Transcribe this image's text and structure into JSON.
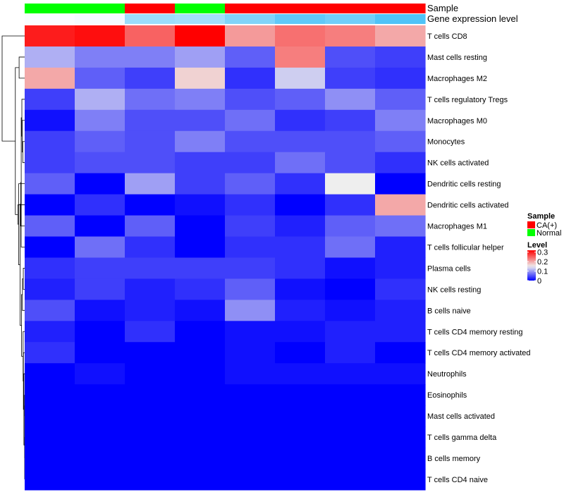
{
  "chart_data": {
    "type": "heatmap",
    "title": "",
    "annotation_tracks": {
      "sample_label": "Sample",
      "level_label": "Gene expression level"
    },
    "columns": [
      {
        "sample": "Normal",
        "level": 0.31
      },
      {
        "sample": "Normal",
        "level": 0.3
      },
      {
        "sample": "CA(+)",
        "level": 0.14
      },
      {
        "sample": "Normal",
        "level": 0.15
      },
      {
        "sample": "CA(+)",
        "level": 0.09
      },
      {
        "sample": "CA(+)",
        "level": 0.03
      },
      {
        "sample": "CA(+)",
        "level": 0.06
      },
      {
        "sample": "CA(+)",
        "level": 0.0
      }
    ],
    "rows": [
      "T cells CD8",
      "Mast cells resting",
      "Macrophages M2",
      "T cells regulatory  Tregs",
      "Macrophages M0",
      "Monocytes",
      "NK cells activated",
      "Dendritic cells resting",
      "Dendritic cells activated",
      "Macrophages M1",
      "T cells follicular helper",
      "Plasma cells",
      "NK cells resting",
      "B cells naive",
      "T cells CD4 memory resting",
      "T cells CD4 memory activated",
      "Neutrophils",
      "Eosinophils",
      "Mast cells activated",
      "T cells gamma delta",
      "B cells memory",
      "T cells CD4 naive"
    ],
    "values": [
      [
        0.3,
        0.31,
        0.25,
        0.32,
        0.21,
        0.24,
        0.23,
        0.2
      ],
      [
        0.11,
        0.08,
        0.08,
        0.1,
        0.06,
        0.23,
        0.05,
        0.04
      ],
      [
        0.2,
        0.06,
        0.04,
        0.17,
        0.03,
        0.13,
        0.04,
        0.03
      ],
      [
        0.04,
        0.11,
        0.07,
        0.08,
        0.05,
        0.06,
        0.09,
        0.06
      ],
      [
        0.01,
        0.08,
        0.05,
        0.05,
        0.07,
        0.03,
        0.04,
        0.08
      ],
      [
        0.04,
        0.06,
        0.05,
        0.08,
        0.05,
        0.05,
        0.05,
        0.06
      ],
      [
        0.04,
        0.05,
        0.05,
        0.04,
        0.04,
        0.07,
        0.05,
        0.03
      ],
      [
        0.06,
        0.0,
        0.1,
        0.04,
        0.06,
        0.03,
        0.15,
        0.0
      ],
      [
        0.0,
        0.03,
        0.0,
        0.01,
        0.03,
        0.0,
        0.03,
        0.2
      ],
      [
        0.06,
        0.0,
        0.06,
        0.0,
        0.04,
        0.02,
        0.06,
        0.07
      ],
      [
        0.0,
        0.07,
        0.03,
        0.0,
        0.03,
        0.03,
        0.07,
        0.02
      ],
      [
        0.03,
        0.04,
        0.04,
        0.04,
        0.04,
        0.03,
        0.01,
        0.02
      ],
      [
        0.02,
        0.04,
        0.02,
        0.03,
        0.06,
        0.01,
        0.0,
        0.03
      ],
      [
        0.05,
        0.01,
        0.02,
        0.01,
        0.09,
        0.02,
        0.01,
        0.02
      ],
      [
        0.02,
        0.0,
        0.03,
        0.0,
        0.01,
        0.01,
        0.02,
        0.02
      ],
      [
        0.03,
        0.0,
        0.0,
        0.0,
        0.01,
        0.0,
        0.02,
        0.0
      ],
      [
        0.0,
        0.01,
        0.0,
        0.0,
        0.01,
        0.01,
        0.01,
        0.01
      ],
      [
        0.0,
        0.0,
        0.0,
        0.0,
        0.0,
        0.0,
        0.0,
        0.0
      ],
      [
        0.0,
        0.0,
        0.0,
        0.0,
        0.0,
        0.0,
        0.0,
        0.0
      ],
      [
        0.0,
        0.0,
        0.0,
        0.0,
        0.0,
        0.0,
        0.0,
        0.0
      ],
      [
        0.0,
        0.0,
        0.0,
        0.0,
        0.0,
        0.0,
        0.0,
        0.0
      ],
      [
        0.0,
        0.0,
        0.0,
        0.0,
        0.0,
        0.0,
        0.0,
        0.0
      ]
    ],
    "color_scale": {
      "low": "#0000ff",
      "mid": "#eeeeee",
      "high": "#ff0000",
      "mid_value": 0.15,
      "max_value": 0.32
    },
    "level_track_scale": {
      "low": "#4fc3f7",
      "high": "#ffffff",
      "max_value": 0.32
    },
    "sample_colors": {
      "CA(+)": "#ff0000",
      "Normal": "#00ff00"
    },
    "legend": {
      "sample_title": "Sample",
      "sample_entries": [
        "CA(+)",
        "Normal"
      ],
      "level_title": "Level",
      "level_ticks": [
        {
          "value": 0.3,
          "label": "0.3"
        },
        {
          "value": 0.2,
          "label": "0.2"
        },
        {
          "value": 0.1,
          "label": "0.1"
        },
        {
          "value": 0.0,
          "label": "0"
        }
      ],
      "level_max": 0.32
    }
  }
}
